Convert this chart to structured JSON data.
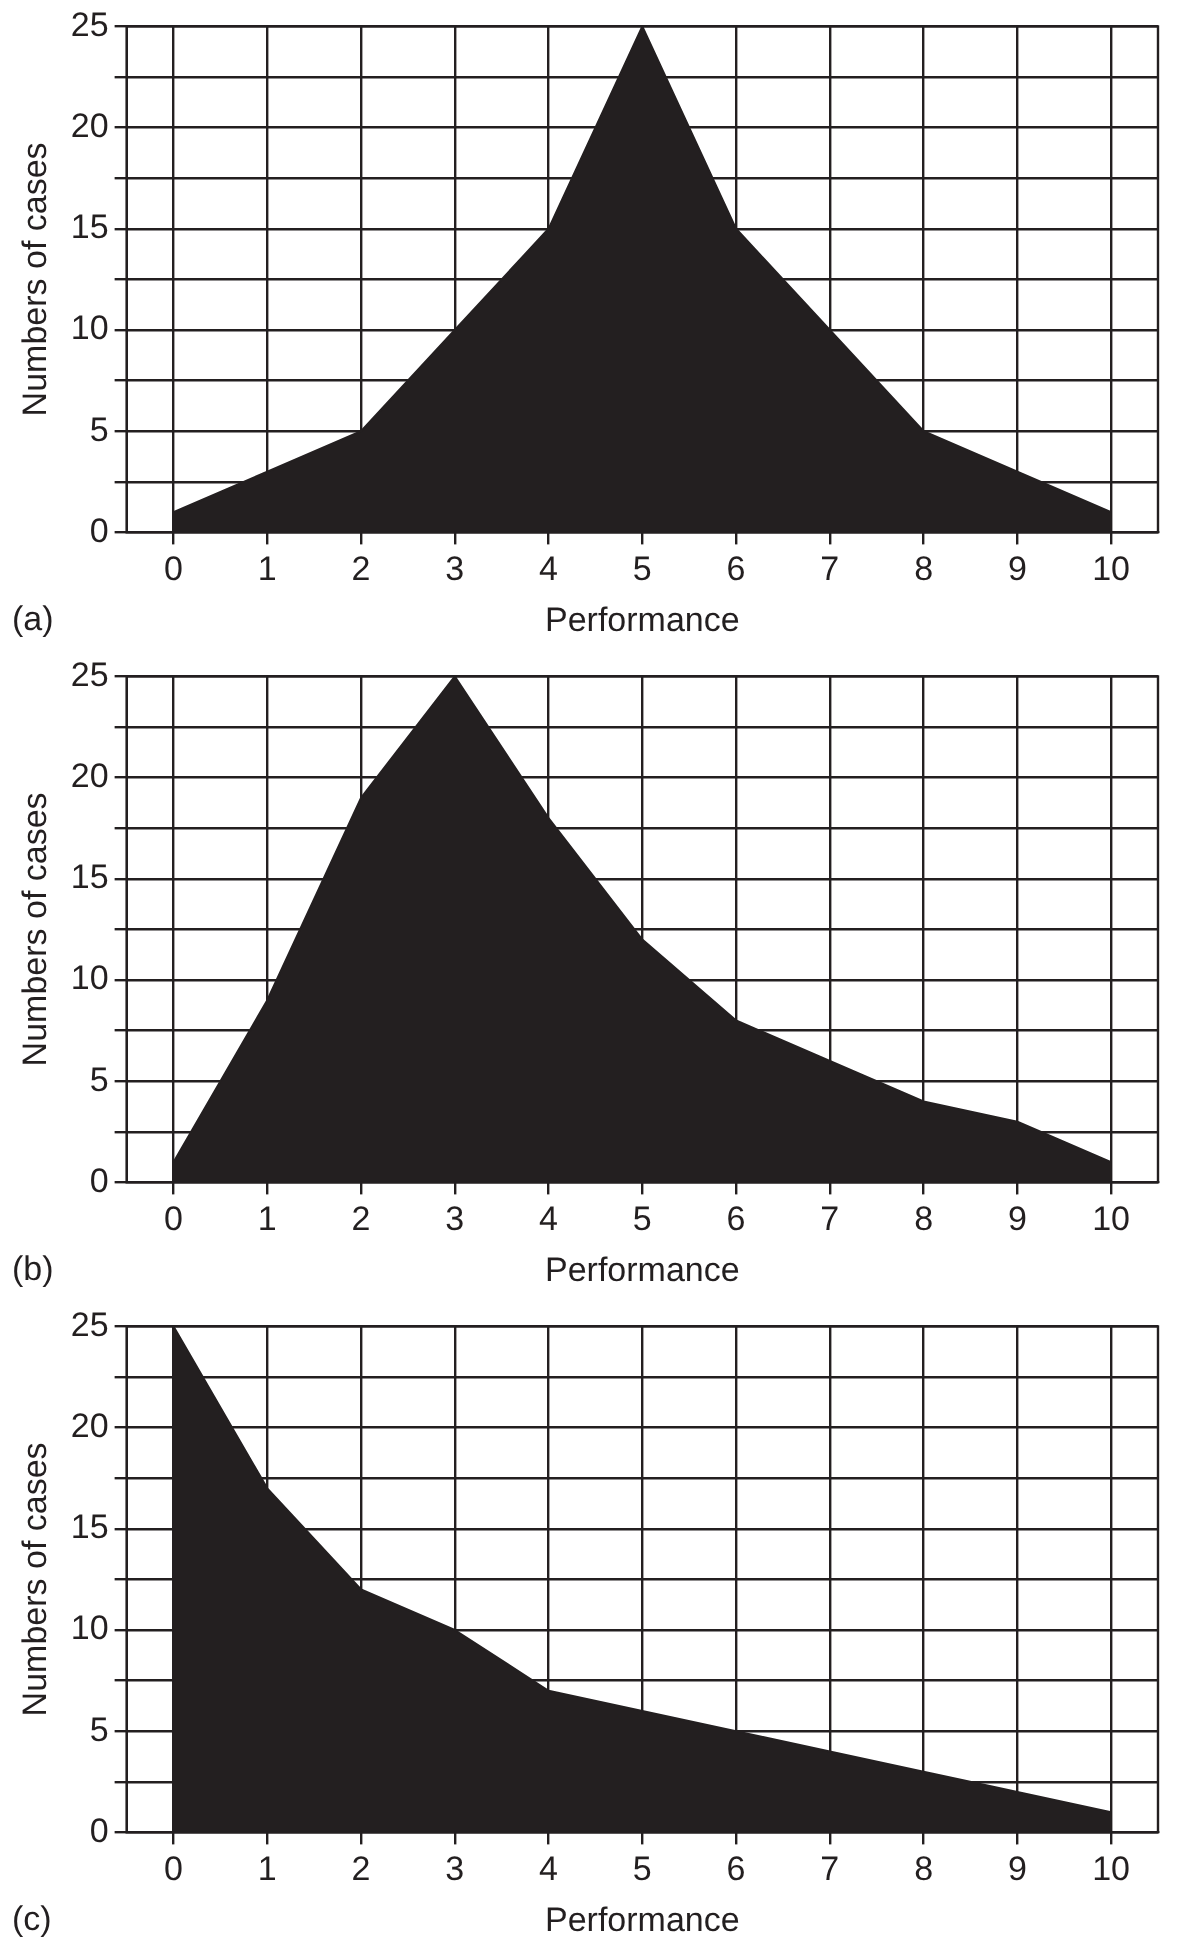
{
  "chart_data": [
    {
      "type": "area",
      "xlabel": "Performance",
      "ylabel": "Numbers of cases",
      "annotations": [
        "(a)"
      ],
      "x": [
        0,
        1,
        2,
        3,
        4,
        5,
        6,
        7,
        8,
        9,
        10
      ],
      "values": [
        1,
        3,
        5,
        10,
        15,
        25,
        15,
        10,
        5,
        3,
        1
      ],
      "color": "#231f20",
      "xlim": [
        -0.5,
        10.5
      ],
      "xticks": [
        0,
        1,
        2,
        3,
        4,
        5,
        6,
        7,
        8,
        9,
        10
      ],
      "ylim": [
        0,
        25
      ],
      "yticks": [
        0,
        {
          "value": 2.5,
          "label": null
        },
        5,
        {
          "value": 7.5,
          "label": null
        },
        10,
        {
          "value": 12.5,
          "label": null
        },
        15,
        {
          "value": 17.5,
          "label": null
        },
        20,
        {
          "value": 22.5,
          "label": null
        },
        25
      ],
      "grid": true
    },
    {
      "type": "area",
      "xlabel": "Performance",
      "ylabel": "Numbers of cases",
      "annotations": [
        "(b)"
      ],
      "x": [
        0,
        1,
        2,
        3,
        4,
        5,
        6,
        7,
        8,
        9,
        10
      ],
      "values": [
        1,
        9,
        19,
        25,
        18,
        12,
        8,
        6,
        4,
        3,
        1
      ],
      "color": "#231f20",
      "xlim": [
        -0.5,
        10.5
      ],
      "xticks": [
        0,
        1,
        2,
        3,
        4,
        5,
        6,
        7,
        8,
        9,
        10
      ],
      "ylim": [
        0,
        25
      ],
      "yticks": [
        0,
        {
          "value": 2.5,
          "label": null
        },
        5,
        {
          "value": 7.5,
          "label": null
        },
        10,
        {
          "value": 12.5,
          "label": null
        },
        15,
        {
          "value": 17.5,
          "label": null
        },
        20,
        {
          "value": 22.5,
          "label": null
        },
        25
      ],
      "grid": true
    },
    {
      "type": "area",
      "xlabel": "Performance",
      "ylabel": "Numbers of cases",
      "annotations": [
        "(c)"
      ],
      "x": [
        0,
        1,
        2,
        3,
        4,
        5,
        6,
        7,
        8,
        9,
        10
      ],
      "values": [
        25,
        17,
        12,
        10,
        7,
        6,
        5,
        4,
        3,
        2,
        1
      ],
      "color": "#231f20",
      "xlim": [
        -0.5,
        10.5
      ],
      "xticks": [
        0,
        1,
        2,
        3,
        4,
        5,
        6,
        7,
        8,
        9,
        10
      ],
      "ylim": [
        0,
        25
      ],
      "yticks": [
        0,
        {
          "value": 2.5,
          "label": null
        },
        5,
        {
          "value": 7.5,
          "label": null
        },
        10,
        {
          "value": 12.5,
          "label": null
        },
        15,
        {
          "value": 17.5,
          "label": null
        },
        20,
        {
          "value": 22.5,
          "label": null
        },
        25
      ],
      "grid": true
    }
  ]
}
